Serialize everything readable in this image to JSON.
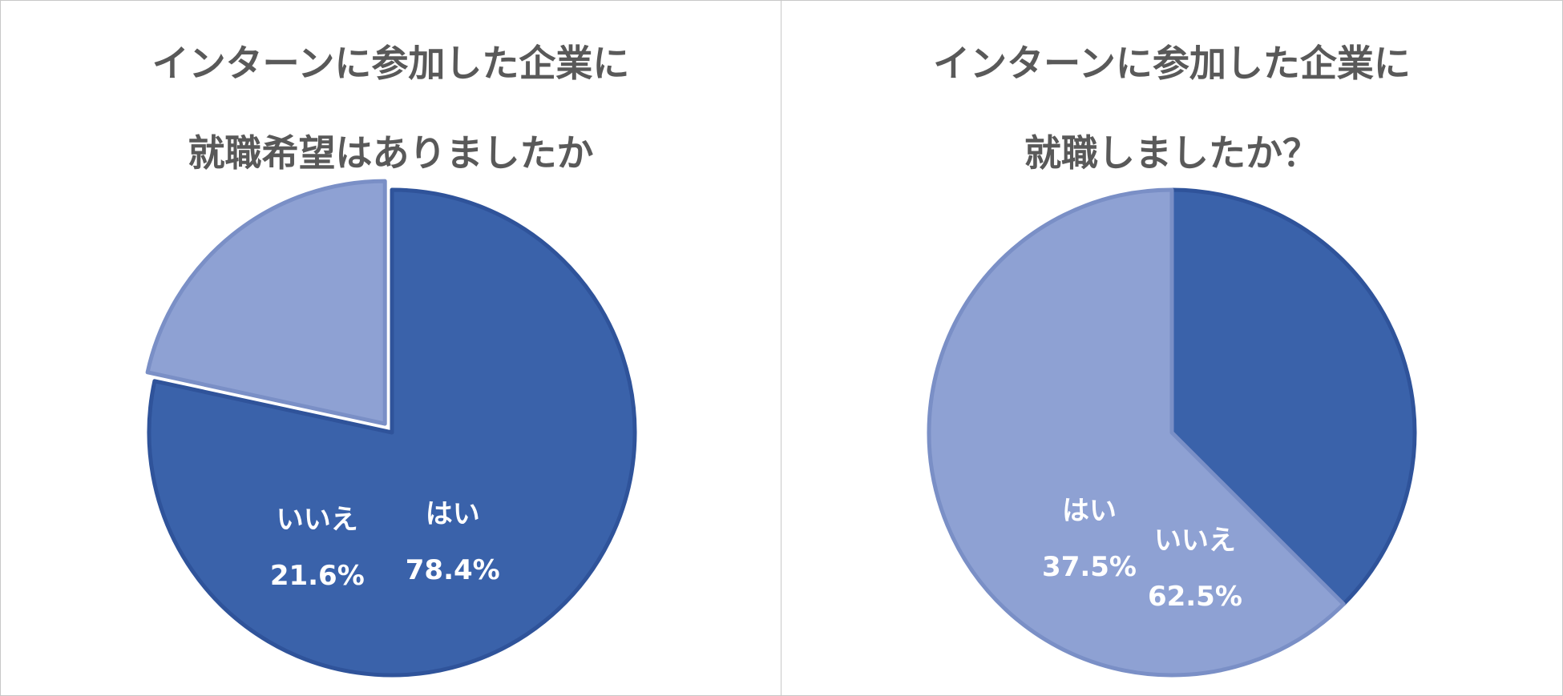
{
  "colors": {
    "yes": "#3A62AA",
    "yes_border": "#2F539A",
    "no": "#8EA1D3",
    "no_border": "#7A8FC6",
    "title": "#595959",
    "label": "#FFFFFF"
  },
  "chart_data": [
    {
      "type": "pie",
      "title_lines": [
        "インターンに参加した企業に",
        "就職希望はありましたか"
      ],
      "slices": [
        {
          "label": "はい",
          "value": 78.4,
          "value_label": "78.4%",
          "color_key": "yes"
        },
        {
          "label": "いいえ",
          "value": 21.6,
          "value_label": "21.6%",
          "color_key": "no"
        }
      ],
      "start": "12 o'clock",
      "direction": "clockwise",
      "exploded": "いいえ"
    },
    {
      "type": "pie",
      "title_lines": [
        "インターンに参加した企業に",
        "就職しましたか？"
      ],
      "slices": [
        {
          "label": "はい",
          "value": 37.5,
          "value_label": "37.5%",
          "color_key": "yes"
        },
        {
          "label": "いいえ",
          "value": 62.5,
          "value_label": "62.5%",
          "color_key": "no"
        }
      ],
      "start": "12 o'clock",
      "direction": "clockwise"
    }
  ]
}
